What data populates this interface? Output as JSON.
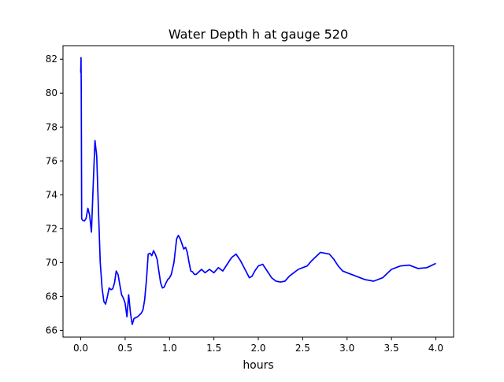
{
  "chart_data": {
    "type": "line",
    "title": "Water Depth h at gauge 520",
    "xlabel": "hours",
    "ylabel": "",
    "xlim": [
      -0.2,
      4.2
    ],
    "ylim": [
      65.6,
      82.8
    ],
    "xticks": [
      "0.0",
      "0.5",
      "1.0",
      "1.5",
      "2.0",
      "2.5",
      "3.0",
      "3.5",
      "4.0"
    ],
    "yticks": [
      "66",
      "68",
      "70",
      "72",
      "74",
      "76",
      "78",
      "80",
      "82"
    ],
    "grid": false,
    "legend": "none",
    "series": [
      {
        "color": "#0000ff",
        "x": [
          0.0,
          0.003,
          0.006,
          0.01,
          0.02,
          0.04,
          0.06,
          0.08,
          0.1,
          0.12,
          0.14,
          0.16,
          0.18,
          0.2,
          0.22,
          0.24,
          0.26,
          0.28,
          0.3,
          0.32,
          0.34,
          0.36,
          0.38,
          0.4,
          0.42,
          0.44,
          0.46,
          0.48,
          0.5,
          0.52,
          0.54,
          0.56,
          0.58,
          0.6,
          0.62,
          0.64,
          0.66,
          0.68,
          0.7,
          0.72,
          0.74,
          0.76,
          0.78,
          0.8,
          0.82,
          0.84,
          0.86,
          0.88,
          0.9,
          0.92,
          0.94,
          0.96,
          0.98,
          1.0,
          1.02,
          1.05,
          1.08,
          1.1,
          1.12,
          1.14,
          1.16,
          1.18,
          1.2,
          1.22,
          1.24,
          1.26,
          1.28,
          1.3,
          1.32,
          1.34,
          1.36,
          1.38,
          1.4,
          1.45,
          1.5,
          1.55,
          1.6,
          1.65,
          1.7,
          1.75,
          1.8,
          1.85,
          1.9,
          1.93,
          1.96,
          2.0,
          2.05,
          2.1,
          2.15,
          2.2,
          2.25,
          2.3,
          2.35,
          2.4,
          2.45,
          2.5,
          2.55,
          2.6,
          2.7,
          2.8,
          2.85,
          2.9,
          2.95,
          3.0,
          3.1,
          3.2,
          3.3,
          3.4,
          3.5,
          3.6,
          3.7,
          3.8,
          3.9,
          4.0
        ],
        "y": [
          81.2,
          82.1,
          80.0,
          72.6,
          72.5,
          72.45,
          72.6,
          73.2,
          72.8,
          71.8,
          74.5,
          77.2,
          76.3,
          73.0,
          70.0,
          68.5,
          67.7,
          67.55,
          68.0,
          68.5,
          68.4,
          68.45,
          68.8,
          69.5,
          69.3,
          68.7,
          68.1,
          67.9,
          67.6,
          66.8,
          68.1,
          67.0,
          66.35,
          66.7,
          66.75,
          66.8,
          66.9,
          67.0,
          67.2,
          67.8,
          69.0,
          70.5,
          70.55,
          70.4,
          70.7,
          70.5,
          70.2,
          69.5,
          68.8,
          68.5,
          68.55,
          68.8,
          69.0,
          69.1,
          69.3,
          70.0,
          71.4,
          71.6,
          71.4,
          71.1,
          70.8,
          70.9,
          70.6,
          70.0,
          69.5,
          69.45,
          69.3,
          69.3,
          69.4,
          69.5,
          69.6,
          69.5,
          69.4,
          69.6,
          69.4,
          69.7,
          69.5,
          69.9,
          70.3,
          70.5,
          70.1,
          69.6,
          69.1,
          69.2,
          69.5,
          69.8,
          69.9,
          69.5,
          69.1,
          68.9,
          68.85,
          68.9,
          69.2,
          69.4,
          69.6,
          69.7,
          69.8,
          70.1,
          70.6,
          70.5,
          70.2,
          69.8,
          69.5,
          69.4,
          69.2,
          69.0,
          68.9,
          69.1,
          69.6,
          69.8,
          69.85,
          69.65,
          69.7,
          69.95
        ]
      }
    ]
  }
}
